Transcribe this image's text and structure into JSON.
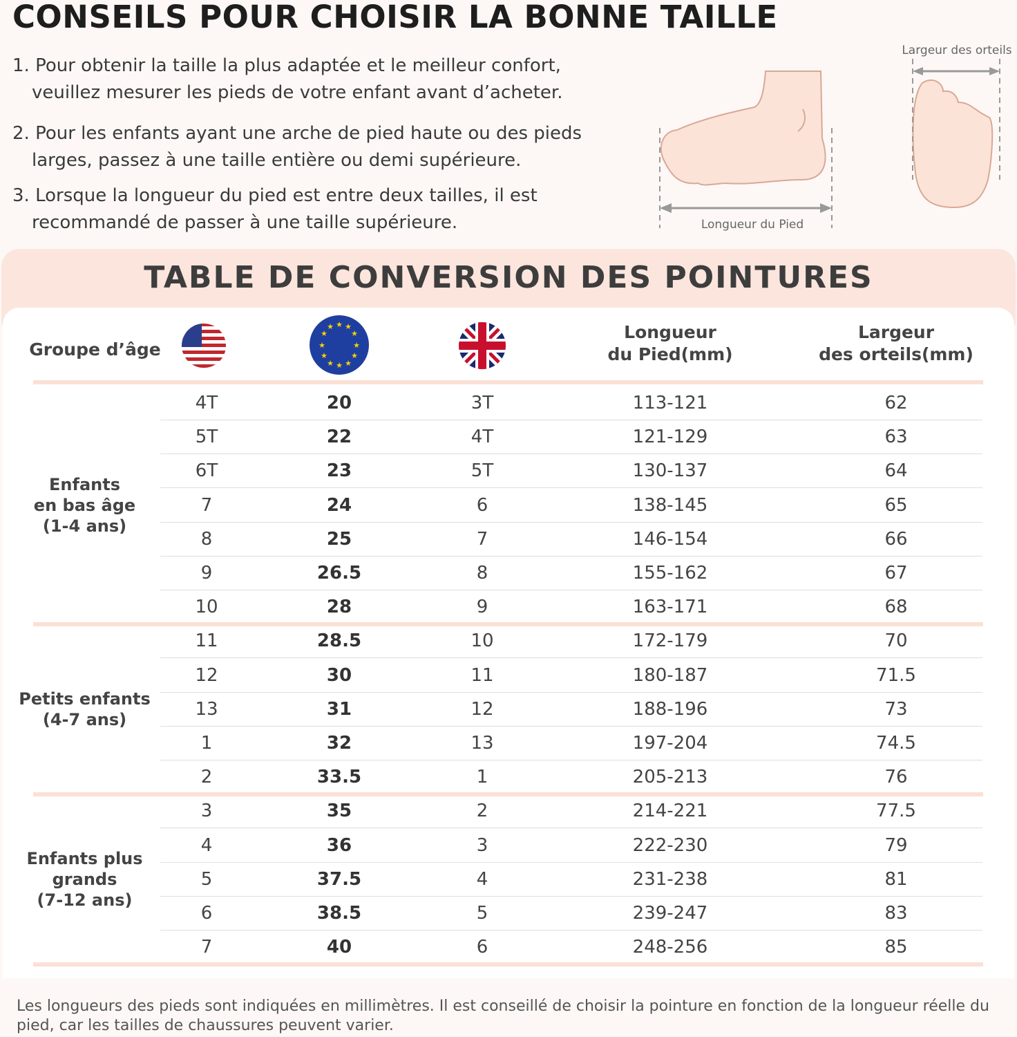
{
  "title": "CONSEILS POUR CHOISIR LA BONNE TAILLE",
  "tips": [
    "1. Pour obtenir la taille la plus adaptée et le meilleur confort, veuillez mesurer les pieds de votre enfant avant d’acheter.",
    "2. Pour les enfants ayant une arche de pied haute ou des pieds larges, passez à une taille entière ou demi supérieure.",
    "3. Lorsque la longueur du pied est entre deux tailles, il est recommandé de passer à une taille supérieure."
  ],
  "illustration": {
    "length_label": "Longueur du Pied",
    "width_label": "Largeur des orteils"
  },
  "table": {
    "title": "TABLE DE CONVERSION DES POINTURES",
    "headers": {
      "age": "Groupe d’âge",
      "us_flag": "us-flag-icon",
      "eu_flag": "eu-flag-icon",
      "uk_flag": "uk-flag-icon",
      "length": "Longueur\ndu Pied(mm)",
      "width": "Largeur\ndes orteils(mm)"
    },
    "groups": [
      {
        "label": "Enfants\nen bas âge\n(1-4 ans)",
        "rows": [
          [
            "4T",
            "20",
            "3T",
            "113-121",
            "62"
          ],
          [
            "5T",
            "22",
            "4T",
            "121-129",
            "63"
          ],
          [
            "6T",
            "23",
            "5T",
            "130-137",
            "64"
          ],
          [
            "7",
            "24",
            "6",
            "138-145",
            "65"
          ],
          [
            "8",
            "25",
            "7",
            "146-154",
            "66"
          ],
          [
            "9",
            "26.5",
            "8",
            "155-162",
            "67"
          ],
          [
            "10",
            "28",
            "9",
            "163-171",
            "68"
          ]
        ]
      },
      {
        "label": "Petits enfants\n(4-7 ans)",
        "rows": [
          [
            "11",
            "28.5",
            "10",
            "172-179",
            "70"
          ],
          [
            "12",
            "30",
            "11",
            "180-187",
            "71.5"
          ],
          [
            "13",
            "31",
            "12",
            "188-196",
            "73"
          ],
          [
            "1",
            "32",
            "13",
            "197-204",
            "74.5"
          ],
          [
            "2",
            "33.5",
            "1",
            "205-213",
            "76"
          ]
        ]
      },
      {
        "label": "Enfants plus\ngrands\n(7-12 ans)",
        "rows": [
          [
            "3",
            "35",
            "2",
            "214-221",
            "77.5"
          ],
          [
            "4",
            "36",
            "3",
            "222-230",
            "79"
          ],
          [
            "5",
            "37.5",
            "4",
            "231-238",
            "81"
          ],
          [
            "6",
            "38.5",
            "5",
            "239-247",
            "83"
          ],
          [
            "7",
            "40",
            "6",
            "248-256",
            "85"
          ]
        ]
      }
    ]
  },
  "note": "Les longueurs des pieds sont indiquées en millimètres. Il est conseillé de choisir la pointure en fonction de la longueur réelle du pied, car les tailles de chaussures peuvent varier.",
  "colors": {
    "band": "#fbe5dd",
    "separator": "#fbe0d6",
    "skin": "#fbe0d4"
  }
}
